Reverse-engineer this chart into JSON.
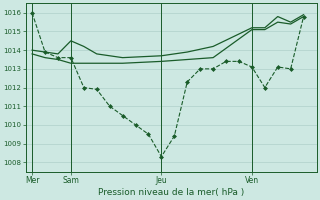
{
  "bg_color": "#cde8e2",
  "grid_color": "#afd0ca",
  "line_color": "#1a5c2a",
  "title": "Pression niveau de la mer( hPa )",
  "ylim": [
    1007.5,
    1016.5
  ],
  "yticks": [
    1008,
    1009,
    1010,
    1011,
    1012,
    1013,
    1014,
    1015,
    1016
  ],
  "day_positions": [
    0,
    3,
    10,
    17,
    21
  ],
  "day_labels": [
    "Mer",
    "Sam",
    "Jeu",
    "Ven"
  ],
  "xlim": [
    -0.5,
    22
  ],
  "line_dashed": {
    "x": [
      0,
      1,
      2,
      3,
      4,
      5,
      6,
      7,
      8,
      9,
      10,
      11,
      12,
      13,
      14,
      15,
      16,
      17,
      18,
      19,
      20,
      21
    ],
    "y": [
      1016.0,
      1013.9,
      1013.6,
      1013.6,
      1012.0,
      1011.9,
      1011.0,
      1010.5,
      1010.0,
      1009.5,
      1008.3,
      1009.4,
      1012.3,
      1013.0,
      1013.0,
      1013.4,
      1013.4,
      1013.1,
      1012.0,
      1013.1,
      1013.0,
      1015.8
    ]
  },
  "line_solid1": {
    "x": [
      0,
      1,
      2,
      3,
      4,
      5,
      7,
      10,
      12,
      14,
      17,
      18,
      19,
      20,
      21
    ],
    "y": [
      1014.0,
      1013.9,
      1013.8,
      1014.5,
      1014.2,
      1013.8,
      1013.6,
      1013.7,
      1013.9,
      1014.2,
      1015.2,
      1015.2,
      1015.8,
      1015.5,
      1015.9
    ]
  },
  "line_solid2": {
    "x": [
      0,
      1,
      2,
      3,
      4,
      5,
      7,
      10,
      12,
      14,
      17,
      18,
      19,
      20,
      21
    ],
    "y": [
      1013.8,
      1013.6,
      1013.5,
      1013.3,
      1013.3,
      1013.3,
      1013.3,
      1013.4,
      1013.5,
      1013.6,
      1015.1,
      1015.1,
      1015.5,
      1015.4,
      1015.8
    ]
  }
}
